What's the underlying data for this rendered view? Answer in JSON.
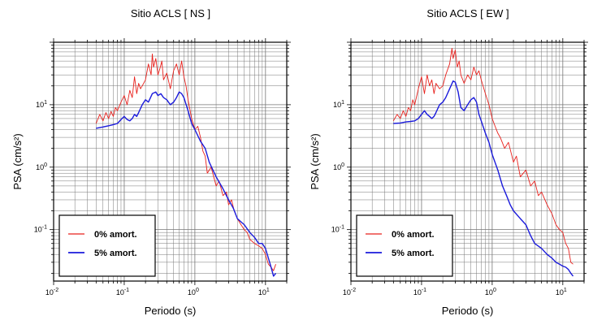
{
  "chart_data": [
    {
      "type": "line",
      "title": "Sitio ACLS [ NS ]",
      "xlabel": "Periodo (s)",
      "ylabel": "PSA (cm/s²)",
      "xscale": "log",
      "yscale": "log",
      "xlim": [
        0.01,
        20
      ],
      "ylim": [
        0.015,
        100
      ],
      "grid": true,
      "legend_position": "bottom-left",
      "x_ticks": [
        {
          "base": "10",
          "exp": "-2",
          "value": 0.01
        },
        {
          "base": "10",
          "exp": "-1",
          "value": 0.1
        },
        {
          "base": "10",
          "exp": "0",
          "value": 1
        },
        {
          "base": "10",
          "exp": "1",
          "value": 10
        }
      ],
      "y_ticks": [
        {
          "base": "10",
          "exp": "-1",
          "value": 0.1
        },
        {
          "base": "10",
          "exp": "0",
          "value": 1
        },
        {
          "base": "10",
          "exp": "1",
          "value": 10
        }
      ],
      "series": [
        {
          "name": "0% amort.",
          "color": "#e8201c",
          "x": [
            0.04,
            0.045,
            0.05,
            0.055,
            0.06,
            0.065,
            0.07,
            0.075,
            0.08,
            0.09,
            0.1,
            0.11,
            0.12,
            0.13,
            0.14,
            0.15,
            0.16,
            0.17,
            0.18,
            0.2,
            0.22,
            0.24,
            0.25,
            0.26,
            0.28,
            0.3,
            0.32,
            0.34,
            0.36,
            0.4,
            0.45,
            0.5,
            0.55,
            0.6,
            0.65,
            0.7,
            0.75,
            0.8,
            0.9,
            1.0,
            1.1,
            1.2,
            1.3,
            1.4,
            1.5,
            1.7,
            2.0,
            2.2,
            2.5,
            2.8,
            3.0,
            3.3,
            3.6,
            4.0,
            4.5,
            5.0,
            5.5,
            6.0,
            7.0,
            8.0,
            9.0,
            10.0,
            11.0,
            12.0,
            13.0,
            14.0
          ],
          "y": [
            5.0,
            7.0,
            5.5,
            7.5,
            6.0,
            7.8,
            6.5,
            9.0,
            8.0,
            11.0,
            14.0,
            10.0,
            17.0,
            13.0,
            28.0,
            15.0,
            22.0,
            18.0,
            20.0,
            25.0,
            45.0,
            30.0,
            65.0,
            40.0,
            55.0,
            30.0,
            38.0,
            50.0,
            25.0,
            32.0,
            18.0,
            35.0,
            45.0,
            30.0,
            50.0,
            28.0,
            20.0,
            12.0,
            6.0,
            4.0,
            4.5,
            3.0,
            1.8,
            1.5,
            0.8,
            1.0,
            0.5,
            0.6,
            0.35,
            0.4,
            0.25,
            0.3,
            0.2,
            0.15,
            0.12,
            0.1,
            0.09,
            0.07,
            0.06,
            0.055,
            0.05,
            0.04,
            0.028,
            0.025,
            0.022,
            0.028
          ]
        },
        {
          "name": "5% amort.",
          "color": "#1a1adb",
          "x": [
            0.04,
            0.05,
            0.06,
            0.07,
            0.08,
            0.09,
            0.1,
            0.11,
            0.12,
            0.13,
            0.14,
            0.15,
            0.16,
            0.18,
            0.2,
            0.22,
            0.25,
            0.28,
            0.3,
            0.33,
            0.36,
            0.4,
            0.45,
            0.5,
            0.55,
            0.6,
            0.65,
            0.7,
            0.8,
            0.9,
            1.0,
            1.2,
            1.4,
            1.6,
            1.8,
            2.0,
            2.5,
            3.0,
            3.5,
            4.0,
            5.0,
            6.0,
            7.0,
            8.0,
            9.0,
            10.0,
            11.0,
            12.0,
            13.0,
            14.0
          ],
          "y": [
            4.2,
            4.4,
            4.6,
            4.8,
            5.0,
            5.8,
            6.5,
            5.8,
            5.5,
            6.0,
            7.0,
            6.5,
            7.5,
            10.0,
            12.0,
            11.0,
            15.0,
            16.0,
            14.0,
            15.0,
            13.0,
            12.0,
            10.0,
            11.0,
            13.0,
            16.0,
            15.0,
            13.0,
            8.0,
            5.0,
            4.0,
            2.6,
            2.0,
            1.2,
            0.9,
            0.7,
            0.45,
            0.3,
            0.22,
            0.15,
            0.12,
            0.09,
            0.075,
            0.06,
            0.06,
            0.05,
            0.035,
            0.025,
            0.018,
            0.02
          ]
        }
      ]
    },
    {
      "type": "line",
      "title": "Sitio ACLS [ EW ]",
      "xlabel": "Periodo (s)",
      "ylabel": "PSA (cm/s²)",
      "xscale": "log",
      "yscale": "log",
      "xlim": [
        0.01,
        20
      ],
      "ylim": [
        0.015,
        100
      ],
      "grid": true,
      "legend_position": "bottom-left",
      "x_ticks": [
        {
          "base": "10",
          "exp": "-2",
          "value": 0.01
        },
        {
          "base": "10",
          "exp": "-1",
          "value": 0.1
        },
        {
          "base": "10",
          "exp": "0",
          "value": 1
        },
        {
          "base": "10",
          "exp": "1",
          "value": 10
        }
      ],
      "y_ticks": [
        {
          "base": "10",
          "exp": "-1",
          "value": 0.1
        },
        {
          "base": "10",
          "exp": "0",
          "value": 1
        },
        {
          "base": "10",
          "exp": "1",
          "value": 10
        }
      ],
      "series": [
        {
          "name": "0% amort.",
          "color": "#e8201c",
          "x": [
            0.04,
            0.045,
            0.05,
            0.055,
            0.06,
            0.065,
            0.07,
            0.075,
            0.08,
            0.09,
            0.1,
            0.11,
            0.12,
            0.13,
            0.14,
            0.15,
            0.16,
            0.18,
            0.2,
            0.22,
            0.25,
            0.27,
            0.28,
            0.3,
            0.32,
            0.34,
            0.36,
            0.4,
            0.45,
            0.5,
            0.55,
            0.6,
            0.65,
            0.7,
            0.8,
            0.9,
            1.0,
            1.1,
            1.2,
            1.3,
            1.5,
            1.7,
            2.0,
            2.2,
            2.5,
            3.0,
            3.5,
            4.0,
            4.5,
            5.0,
            6.0,
            7.0,
            8.0,
            9.0,
            10.0,
            11.0,
            12.0,
            13.0,
            14.0
          ],
          "y": [
            5.5,
            7.0,
            6.0,
            8.0,
            6.5,
            9.0,
            8.0,
            12.0,
            10.0,
            18.0,
            28.0,
            15.0,
            30.0,
            20.0,
            25.0,
            15.0,
            22.0,
            18.0,
            20.0,
            30.0,
            45.0,
            80.0,
            55.0,
            75.0,
            40.0,
            50.0,
            30.0,
            22.0,
            30.0,
            25.0,
            40.0,
            30.0,
            35.0,
            25.0,
            15.0,
            10.0,
            6.0,
            4.5,
            3.5,
            3.0,
            2.0,
            2.5,
            1.2,
            1.5,
            0.7,
            0.9,
            0.5,
            0.6,
            0.35,
            0.4,
            0.25,
            0.18,
            0.12,
            0.1,
            0.09,
            0.06,
            0.05,
            0.03,
            0.028
          ]
        },
        {
          "name": "5% amort.",
          "color": "#1a1adb",
          "x": [
            0.04,
            0.05,
            0.06,
            0.07,
            0.08,
            0.09,
            0.1,
            0.11,
            0.12,
            0.13,
            0.14,
            0.15,
            0.16,
            0.18,
            0.2,
            0.22,
            0.25,
            0.28,
            0.3,
            0.33,
            0.36,
            0.4,
            0.45,
            0.5,
            0.55,
            0.6,
            0.65,
            0.7,
            0.8,
            0.9,
            1.0,
            1.2,
            1.4,
            1.6,
            1.8,
            2.0,
            2.5,
            3.0,
            3.5,
            4.0,
            5.0,
            6.0,
            7.0,
            8.0,
            9.0,
            10.0,
            11.0,
            12.0,
            13.0,
            14.0
          ],
          "y": [
            5.0,
            5.1,
            5.3,
            5.4,
            5.5,
            6.0,
            7.0,
            8.0,
            7.0,
            6.5,
            6.0,
            6.5,
            7.5,
            10.0,
            11.0,
            13.0,
            18.0,
            24.0,
            23.0,
            16.0,
            9.0,
            8.0,
            10.0,
            12.0,
            13.0,
            11.0,
            7.0,
            5.5,
            3.5,
            2.5,
            1.6,
            0.9,
            0.5,
            0.35,
            0.25,
            0.2,
            0.15,
            0.12,
            0.08,
            0.06,
            0.05,
            0.04,
            0.035,
            0.03,
            0.028,
            0.026,
            0.025,
            0.023,
            0.02,
            0.018
          ]
        }
      ]
    }
  ]
}
